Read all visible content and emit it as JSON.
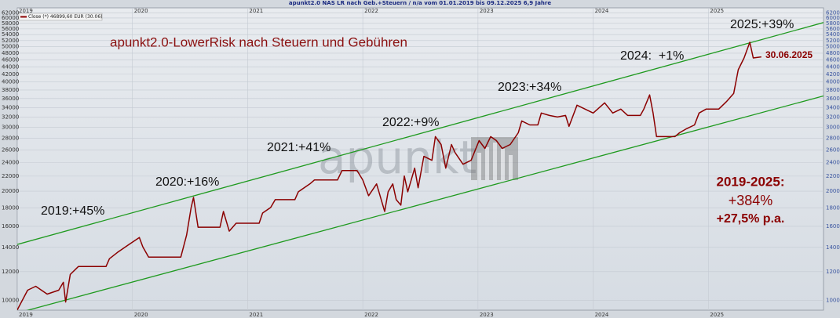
{
  "chart_data": {
    "type": "line",
    "title": "apunkt2.0 NAS LR nach Geb.+Steuern / n/a vom 01.01.2019 bis 09.12.2025 6,9 Jahre",
    "subtitle": "apunkt2.0-LowerRisk nach Steuern und Gebühren",
    "watermark": "apunkt",
    "log_scale": true,
    "grid": true,
    "xlim": [
      2019,
      2026
    ],
    "xticks": [
      2019,
      2020,
      2021,
      2022,
      2023,
      2024,
      2025
    ],
    "ylim": [
      9400,
      64000
    ],
    "yticks": [
      10000,
      12000,
      14000,
      16000,
      18000,
      20000,
      22000,
      24000,
      26000,
      28000,
      30000,
      32000,
      34000,
      36000,
      38000,
      40000,
      42000,
      44000,
      46000,
      48000,
      50000,
      52000,
      54000,
      56000,
      58000,
      60000,
      62000
    ],
    "series": [
      {
        "name": "Close (*) 46899,60 EUR (30.06)",
        "color": "#8b0000",
        "x": [
          2019.0,
          2019.09,
          2019.16,
          2019.26,
          2019.36,
          2019.4,
          2019.42,
          2019.46,
          2019.53,
          2019.67,
          2019.77,
          2019.8,
          2019.87,
          2019.97,
          2020.06,
          2020.09,
          2020.14,
          2020.42,
          2020.47,
          2020.51,
          2020.53,
          2020.57,
          2020.76,
          2020.79,
          2020.84,
          2020.9,
          2021.1,
          2021.13,
          2021.2,
          2021.24,
          2021.41,
          2021.44,
          2021.54,
          2021.58,
          2021.78,
          2021.82,
          2021.95,
          2022.0,
          2022.05,
          2022.12,
          2022.16,
          2022.19,
          2022.22,
          2022.26,
          2022.29,
          2022.33,
          2022.36,
          2022.39,
          2022.45,
          2022.48,
          2022.53,
          2022.6,
          2022.63,
          2022.68,
          2022.72,
          2022.77,
          2022.8,
          2022.87,
          2022.94,
          2023.01,
          2023.06,
          2023.11,
          2023.16,
          2023.21,
          2023.28,
          2023.35,
          2023.38,
          2023.45,
          2023.52,
          2023.55,
          2023.62,
          2023.69,
          2023.76,
          2023.79,
          2023.86,
          2023.93,
          2024.0,
          2024.1,
          2024.17,
          2024.24,
          2024.3,
          2024.41,
          2024.44,
          2024.49,
          2024.52,
          2024.55,
          2024.71,
          2024.75,
          2024.81,
          2024.88,
          2024.92,
          2024.98,
          2025.09,
          2025.16,
          2025.22,
          2025.26,
          2025.31,
          2025.36,
          2025.39,
          2025.46
        ],
        "values": [
          9420,
          10670,
          10940,
          10410,
          10670,
          11220,
          9900,
          11790,
          12400,
          12400,
          12400,
          13030,
          13560,
          14260,
          14910,
          14050,
          13160,
          13160,
          15140,
          18030,
          19230,
          15910,
          15910,
          17580,
          15520,
          16320,
          16320,
          17410,
          18030,
          18950,
          18950,
          19920,
          20940,
          21470,
          21470,
          22800,
          22800,
          21470,
          19430,
          20940,
          18950,
          17580,
          19920,
          20940,
          18950,
          18300,
          22020,
          19920,
          23140,
          20430,
          24940,
          24320,
          28270,
          26890,
          23140,
          26890,
          25570,
          23730,
          24320,
          27560,
          26230,
          28270,
          27560,
          26230,
          26890,
          28970,
          31230,
          30450,
          30450,
          32830,
          32340,
          32010,
          32340,
          30160,
          34510,
          33660,
          32830,
          35030,
          32830,
          33660,
          32340,
          32340,
          33660,
          36830,
          32830,
          28270,
          28270,
          28970,
          29720,
          30450,
          32830,
          33660,
          33660,
          35380,
          37200,
          43210,
          46560,
          51460,
          46560,
          46900
        ]
      }
    ],
    "channel": [
      {
        "color": "#1f9a1f",
        "x": [
          2019,
          2026
        ],
        "values": [
          14260,
          58300
        ]
      },
      {
        "color": "#1f9a1f",
        "x": [
          2019,
          2026
        ],
        "values": [
          9230,
          36600
        ]
      }
    ],
    "annotations": [
      "2019:+45%",
      "2020:+16%",
      "2021:+41%",
      "2022:+9%",
      "2023:+34%",
      "2024:  +1%",
      "2025:+39%",
      "30.06.2025",
      "2019-2025:",
      "+384%",
      "+27,5% p.a."
    ]
  }
}
